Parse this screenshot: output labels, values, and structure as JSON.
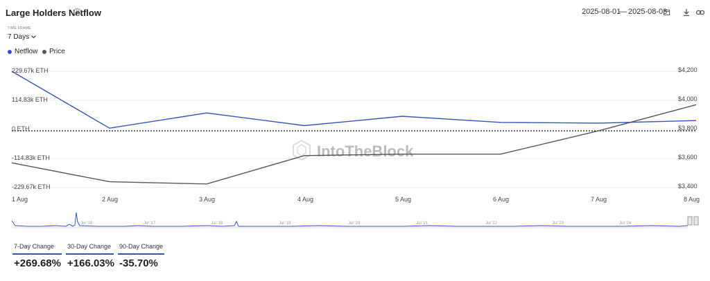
{
  "header": {
    "title": "Large Holders Netflow",
    "date_start": "2025-08-01",
    "date_sep": "—",
    "date_end": "2025-08-08"
  },
  "timeframe": {
    "label": "TIME FRAME",
    "value": "7 Days"
  },
  "legend": [
    {
      "name": "Netflow",
      "color": "#3450c7"
    },
    {
      "name": "Price",
      "color": "#555555"
    }
  ],
  "watermark": "IntoTheBlock",
  "chart_data": {
    "type": "line",
    "categories": [
      "1 Aug",
      "2 Aug",
      "3 Aug",
      "4 Aug",
      "5 Aug",
      "6 Aug",
      "7 Aug",
      "8 Aug"
    ],
    "series": [
      {
        "name": "Netflow",
        "axis": "left",
        "color": "#3450c7",
        "values": [
          229.67,
          5,
          65,
          15,
          52,
          28,
          25,
          35
        ]
      },
      {
        "name": "Price",
        "axis": "right",
        "color": "#555555",
        "values": [
          3570,
          3440,
          3425,
          3620,
          3630,
          3630,
          3790,
          3970
        ]
      }
    ],
    "y_left_ticks": [
      "229.67k ETH",
      "114.83k ETH",
      "0 ETH",
      "-114.83k ETH",
      "-229.67k ETH"
    ],
    "y_left_range": [
      -229.67,
      229.67
    ],
    "y_right_ticks": [
      "$4,200",
      "$4,000",
      "$3,800",
      "$3,600",
      "$3,400"
    ],
    "y_right_range": [
      3400,
      4200
    ],
    "zero_line": "dotted"
  },
  "navigator": {
    "labels": [
      "Jul '16",
      "Jul '17",
      "Jul '18",
      "Jul '19",
      "Jul '20",
      "Jul '21",
      "Jul '22",
      "Jul '23",
      "Jul '24"
    ]
  },
  "changes": [
    {
      "label": "7-Day Change",
      "value": "+269.68%"
    },
    {
      "label": "30-Day Change",
      "value": "+166.03%"
    },
    {
      "label": "90-Day Change",
      "value": "-35.70%"
    }
  ]
}
